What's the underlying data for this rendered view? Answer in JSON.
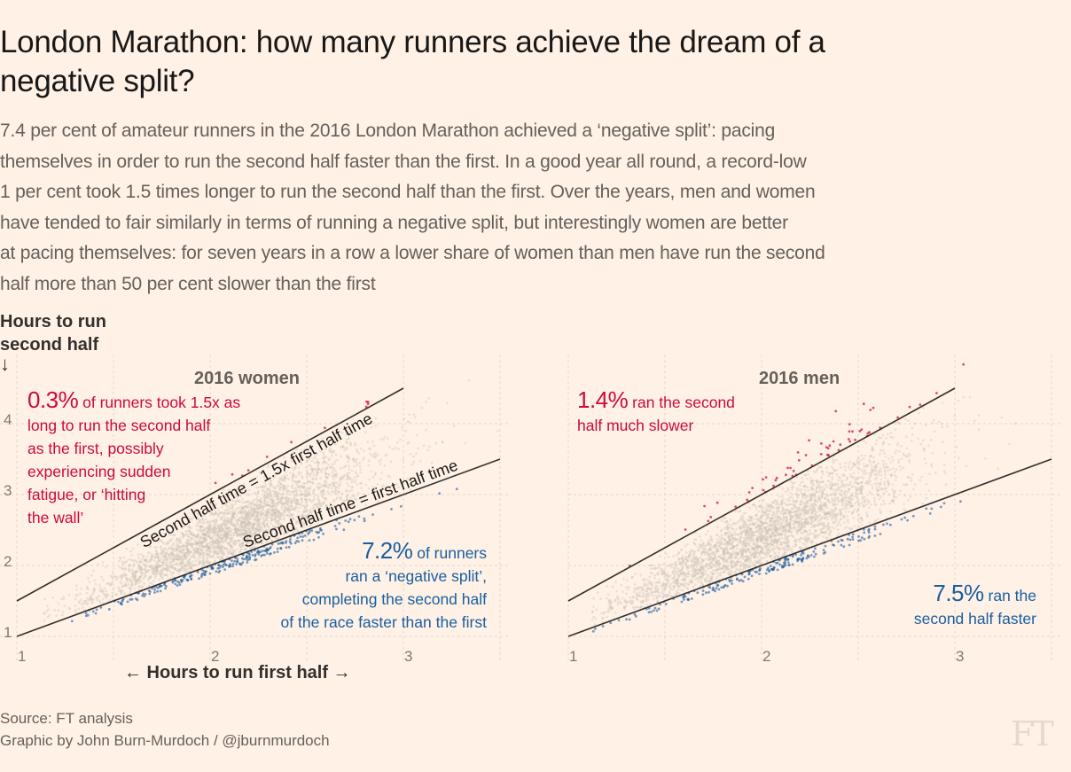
{
  "title_lines": [
    "London Marathon: how many runners achieve the dream of a",
    "negative split?"
  ],
  "subtitle_lines": [
    "7.4 per cent of amateur runners in the 2016 London Marathon achieved a ‘negative split’: pacing",
    "themselves in order to run the second half faster than the first. In a good year all round, a record-low",
    "1 per cent took 1.5 times longer to run the second half than the first. Over the years, men and women",
    "have tended to fair similarly in terms of running a negative split, but interestingly women are better",
    "at pacing themselves: for seven years in a row a lower share of women than men have run the second",
    "half more than 50 per cent slower than the first"
  ],
  "colors": {
    "background": "#fff1e5",
    "slower": "#cc0a3d",
    "faster": "#1a5fa0",
    "even": "#c9bfb4",
    "lines": "#33302e"
  },
  "chart_data": [
    {
      "type": "scatter",
      "title": "2016 women",
      "xlabel": "← Hours to run first half →",
      "ylabel": [
        "Hours to run second half",
        "↓"
      ],
      "xlim": [
        1,
        3.5
      ],
      "ylim": [
        1,
        4.5
      ],
      "xticks": [
        "1",
        "2",
        "3"
      ],
      "yticks": [
        "1",
        "2",
        "3",
        "4"
      ],
      "grid": true,
      "reference_lines": [
        {
          "label": "Second half time = 1.5x first half time",
          "slope": 1.5
        },
        {
          "label": "Second half time = first half time",
          "slope": 1
        }
      ],
      "shares": {
        "negative_split_pct": 7.2,
        "slower_1_5x_pct": 0.3
      },
      "annotations": {
        "red": {
          "big": "0.3%",
          "first": " of runners took 1.5x as",
          "lines": [
            "long to run the second half",
            "as the first, possibly",
            "experiencing sudden",
            "fatigue, or ‘hitting",
            "the wall’"
          ]
        },
        "blue": {
          "big": "7.2%",
          "first": " of runners",
          "lines": [
            "ran a ‘negative split’,",
            "completing the second half",
            "of the race faster than the first"
          ]
        }
      }
    },
    {
      "type": "scatter",
      "title": "2016 men",
      "xlim": [
        1,
        3.5
      ],
      "ylim": [
        1,
        4.5
      ],
      "xticks": [
        "1",
        "2",
        "3"
      ],
      "grid": true,
      "reference_lines": [
        {
          "slope": 1.5
        },
        {
          "slope": 1
        }
      ],
      "shares": {
        "negative_split_pct": 7.5,
        "slower_1_5x_pct": 1.4
      },
      "annotations": {
        "red": {
          "big": "1.4%",
          "first": " ran the second",
          "lines": [
            "half much slower"
          ]
        },
        "blue": {
          "big": "7.5%",
          "first": " ran the",
          "lines": [
            "second half faster"
          ]
        }
      }
    }
  ],
  "source": {
    "line1": "Source: FT analysis",
    "line2": "Graphic by John Burn-Murdoch / @jburnmurdoch"
  },
  "logo": "FT"
}
